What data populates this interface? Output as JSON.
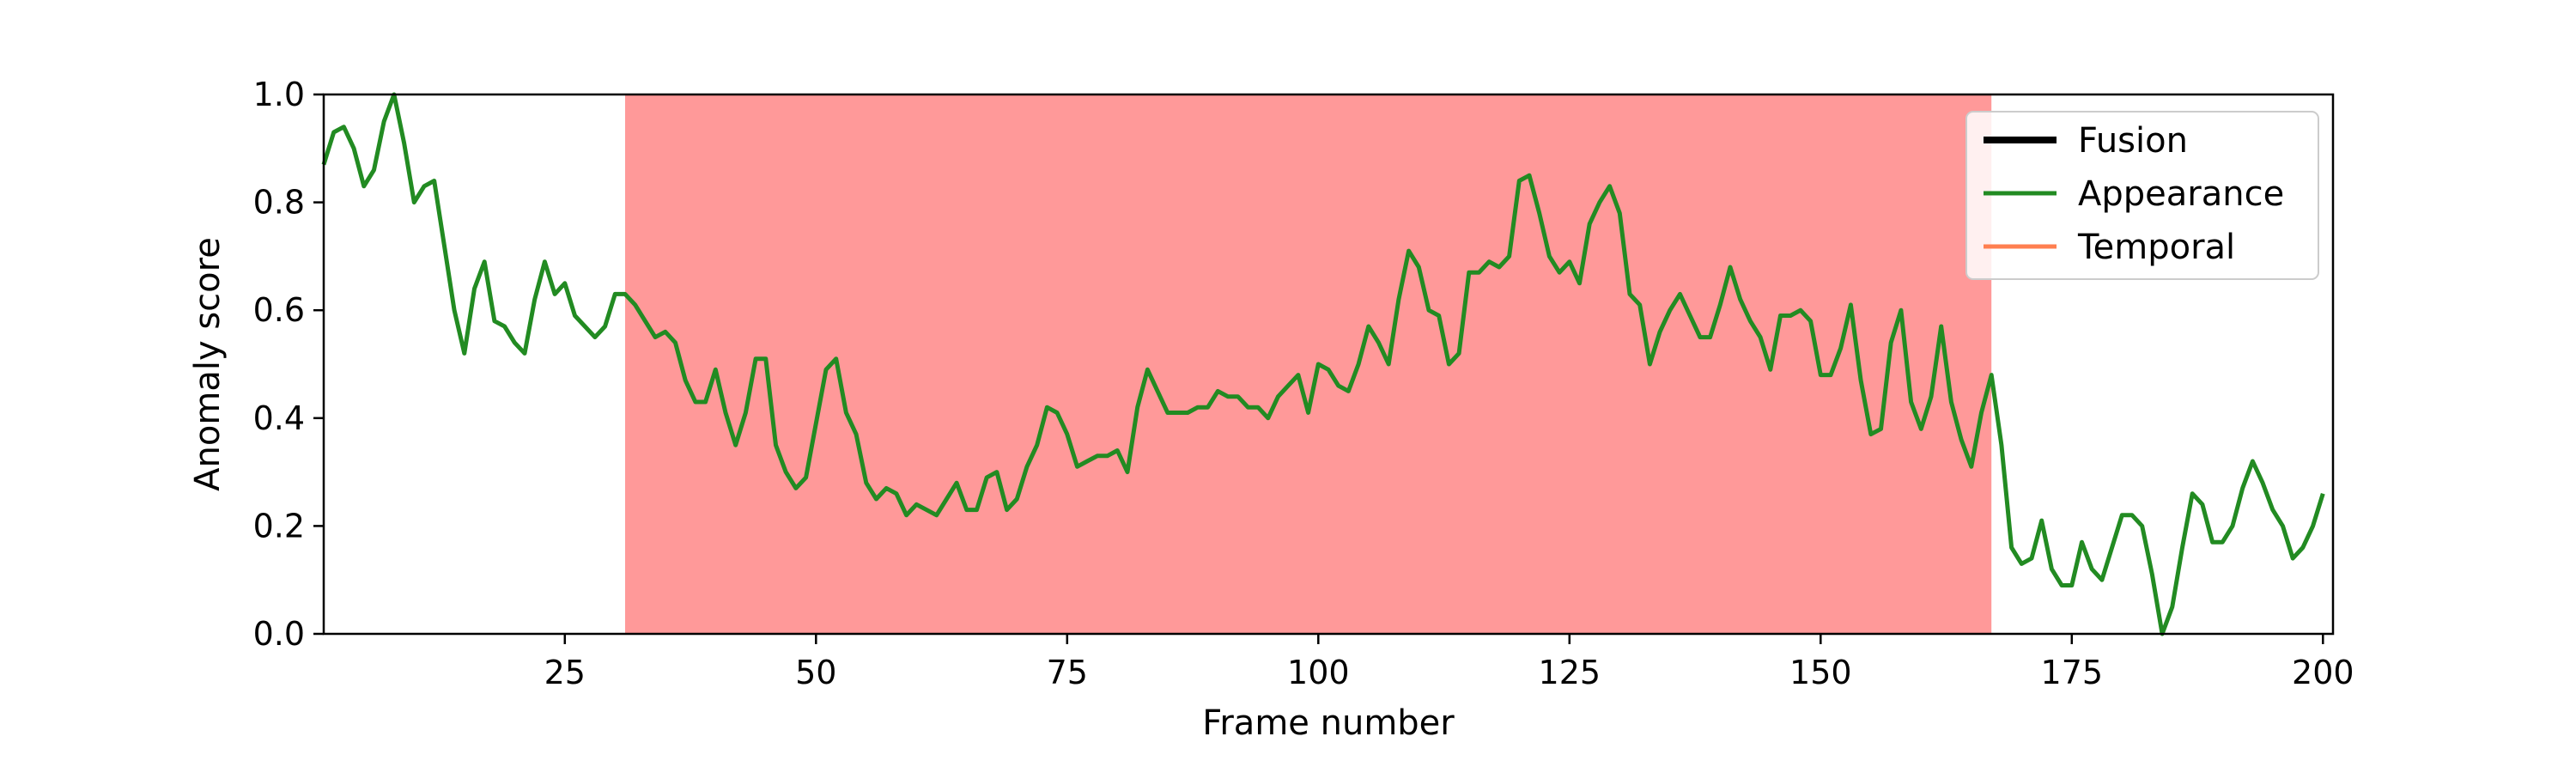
{
  "chart_data": {
    "type": "line",
    "title": "",
    "xlabel": "Frame number",
    "ylabel": "Anomaly score",
    "xlim": [
      1,
      201
    ],
    "ylim": [
      0.0,
      1.0
    ],
    "x_ticks": [
      25,
      50,
      75,
      100,
      125,
      150,
      175,
      200
    ],
    "y_ticks": [
      0.0,
      0.2,
      0.4,
      0.6,
      0.8,
      1.0
    ],
    "x_tick_labels": [
      "25",
      "50",
      "75",
      "100",
      "125",
      "150",
      "175",
      "200"
    ],
    "y_tick_labels": [
      "0.0",
      "0.2",
      "0.4",
      "0.6",
      "0.8",
      "1.0"
    ],
    "grid": false,
    "legend_position": "top-right",
    "anomaly_region": {
      "x_start": 31,
      "x_end": 167,
      "color": "#ff9999"
    },
    "series": [
      {
        "name": "Fusion",
        "color": "#000000",
        "values": []
      },
      {
        "name": "Appearance",
        "color": "#228b22",
        "x": [
          1,
          2,
          3,
          4,
          5,
          6,
          7,
          8,
          9,
          10,
          11,
          12,
          13,
          14,
          15,
          16,
          17,
          18,
          19,
          20,
          21,
          22,
          23,
          24,
          25,
          26,
          27,
          28,
          29,
          30,
          31,
          32,
          33,
          34,
          35,
          36,
          37,
          38,
          39,
          40,
          41,
          42,
          43,
          44,
          45,
          46,
          47,
          48,
          49,
          50,
          51,
          52,
          53,
          54,
          55,
          56,
          57,
          58,
          59,
          60,
          61,
          62,
          63,
          64,
          65,
          66,
          67,
          68,
          69,
          70,
          71,
          72,
          73,
          74,
          75,
          76,
          77,
          78,
          79,
          80,
          81,
          82,
          83,
          84,
          85,
          86,
          87,
          88,
          89,
          90,
          91,
          92,
          93,
          94,
          95,
          96,
          97,
          98,
          99,
          100,
          101,
          102,
          103,
          104,
          105,
          106,
          107,
          108,
          109,
          110,
          111,
          112,
          113,
          114,
          115,
          116,
          117,
          118,
          119,
          120,
          121,
          122,
          123,
          124,
          125,
          126,
          127,
          128,
          129,
          130,
          131,
          132,
          133,
          134,
          135,
          136,
          137,
          138,
          139,
          140,
          141,
          142,
          143,
          144,
          145,
          146,
          147,
          148,
          149,
          150,
          151,
          152,
          153,
          154,
          155,
          156,
          157,
          158,
          159,
          160,
          161,
          162,
          163,
          164,
          165,
          166,
          167,
          168,
          169,
          170,
          171,
          172,
          173,
          174,
          175,
          176,
          177,
          178,
          179,
          180,
          181,
          182,
          183,
          184,
          185,
          186,
          187,
          188,
          189,
          190,
          191,
          192,
          193,
          194,
          195,
          196,
          197,
          198,
          199,
          200
        ],
        "values": [
          0.87,
          0.93,
          0.94,
          0.9,
          0.83,
          0.86,
          0.95,
          1.0,
          0.91,
          0.8,
          0.83,
          0.84,
          0.72,
          0.6,
          0.52,
          0.64,
          0.69,
          0.58,
          0.57,
          0.54,
          0.52,
          0.62,
          0.69,
          0.63,
          0.65,
          0.59,
          0.57,
          0.55,
          0.57,
          0.63,
          0.63,
          0.61,
          0.58,
          0.55,
          0.56,
          0.54,
          0.47,
          0.43,
          0.43,
          0.49,
          0.41,
          0.35,
          0.41,
          0.51,
          0.51,
          0.35,
          0.3,
          0.27,
          0.29,
          0.39,
          0.49,
          0.51,
          0.41,
          0.37,
          0.28,
          0.25,
          0.27,
          0.26,
          0.22,
          0.24,
          0.23,
          0.22,
          0.25,
          0.28,
          0.23,
          0.23,
          0.29,
          0.3,
          0.23,
          0.25,
          0.31,
          0.35,
          0.42,
          0.41,
          0.37,
          0.31,
          0.32,
          0.33,
          0.33,
          0.34,
          0.3,
          0.42,
          0.49,
          0.45,
          0.41,
          0.41,
          0.41,
          0.42,
          0.42,
          0.45,
          0.44,
          0.44,
          0.42,
          0.42,
          0.4,
          0.44,
          0.46,
          0.48,
          0.41,
          0.5,
          0.49,
          0.46,
          0.45,
          0.5,
          0.57,
          0.54,
          0.5,
          0.62,
          0.71,
          0.68,
          0.6,
          0.59,
          0.5,
          0.52,
          0.67,
          0.67,
          0.69,
          0.68,
          0.7,
          0.84,
          0.85,
          0.78,
          0.7,
          0.67,
          0.69,
          0.65,
          0.76,
          0.8,
          0.83,
          0.78,
          0.63,
          0.61,
          0.5,
          0.56,
          0.6,
          0.63,
          0.59,
          0.55,
          0.55,
          0.61,
          0.68,
          0.62,
          0.58,
          0.55,
          0.49,
          0.59,
          0.59,
          0.6,
          0.58,
          0.48,
          0.48,
          0.53,
          0.61,
          0.47,
          0.37,
          0.38,
          0.54,
          0.6,
          0.43,
          0.38,
          0.44,
          0.57,
          0.43,
          0.36,
          0.31,
          0.41,
          0.48,
          0.35,
          0.16,
          0.13,
          0.14,
          0.21,
          0.12,
          0.09,
          0.09,
          0.17,
          0.12,
          0.1,
          0.16,
          0.22,
          0.22,
          0.2,
          0.11,
          0.0,
          0.05,
          0.16,
          0.26,
          0.24,
          0.17,
          0.17,
          0.2,
          0.27,
          0.32,
          0.28,
          0.23,
          0.2,
          0.14,
          0.16,
          0.2,
          0.26
        ]
      },
      {
        "name": "Temporal",
        "color": "#ff7f50",
        "values": []
      }
    ]
  }
}
